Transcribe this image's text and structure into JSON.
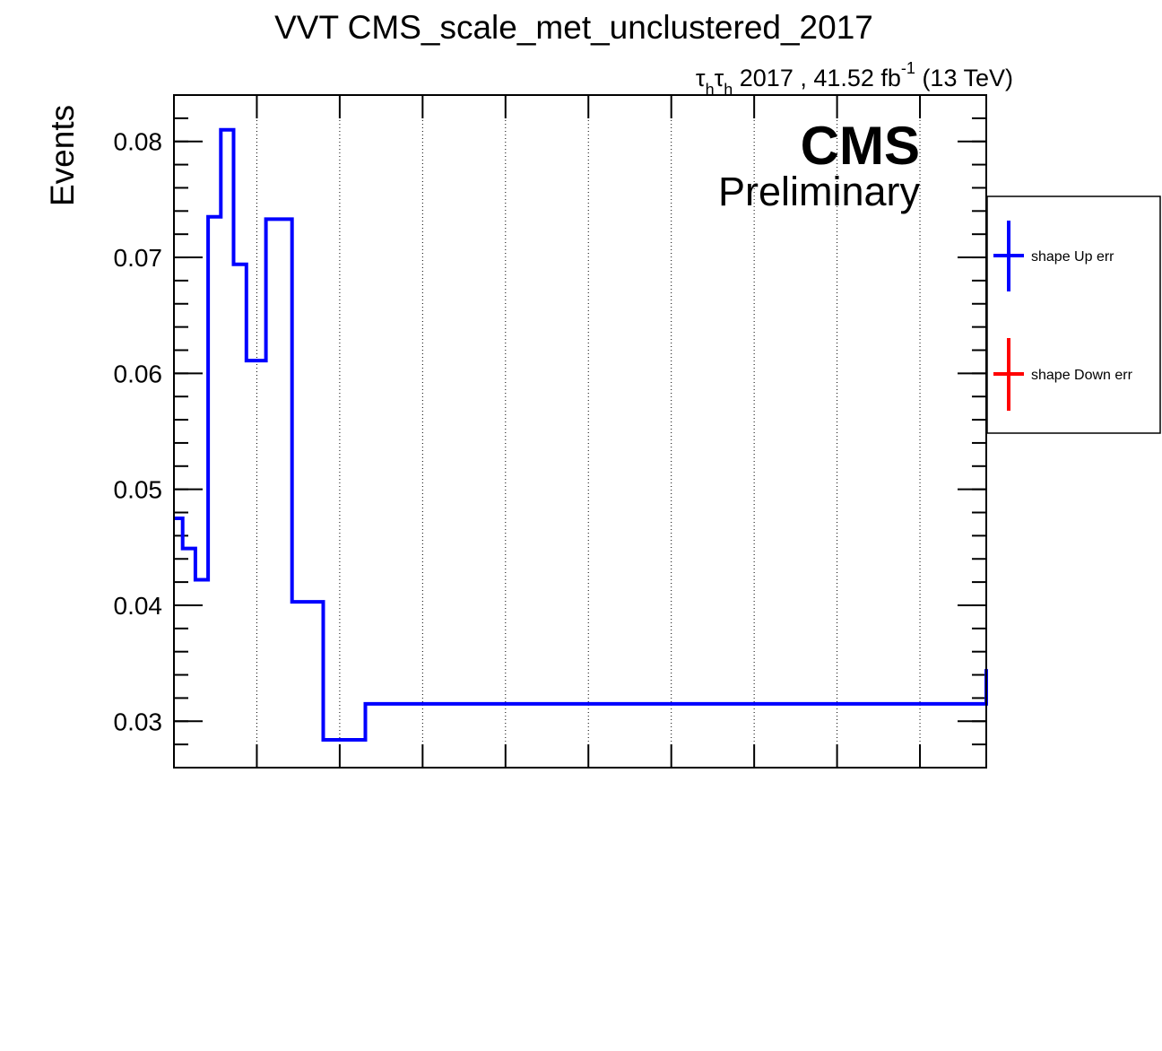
{
  "chart_data": {
    "type": "line",
    "title": "VVT CMS_scale_met_unclustered_2017",
    "subtitle": {
      "tau": "τ",
      "h": "h",
      "text": " 2017 , 41.52 fb",
      "exponent": "-1",
      "energy": " (13 TeV)"
    },
    "ylabel": "Events",
    "xlabel": "",
    "cms_label": "CMS",
    "preliminary_label": "Preliminary",
    "ylim": [
      0.026,
      0.084
    ],
    "xlim": [
      0,
      1
    ],
    "yticks": [
      0.03,
      0.04,
      0.05,
      0.06,
      0.07,
      0.08
    ],
    "ytick_labels": [
      "0.03",
      "0.04",
      "0.05",
      "0.06",
      "0.07",
      "0.08"
    ],
    "grid": "vertical dotted",
    "legend_placement": "right",
    "legend": [
      {
        "label": "shape Up err",
        "color": "#0000ff"
      },
      {
        "label": "shape Down err",
        "color": "#ff0000"
      }
    ],
    "series": [
      {
        "name": "shape Up err",
        "color": "#0000ff",
        "bin_edges": [
          0,
          0.0107,
          0.0264,
          0.042,
          0.0577,
          0.0734,
          0.0892,
          0.1132,
          0.1454,
          0.1838,
          0.2357,
          1.0
        ],
        "values": [
          0.0475,
          0.0449,
          0.0422,
          0.0735,
          0.081,
          0.0694,
          0.0611,
          0.0733,
          0.0403,
          0.0284,
          0.0315,
          0.0345
        ]
      }
    ]
  }
}
